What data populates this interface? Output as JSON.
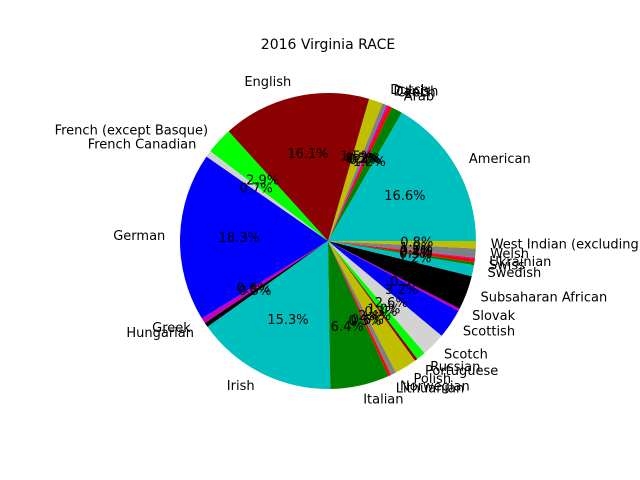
{
  "chart_data": {
    "type": "pie",
    "title": "2016 Virginia RACE",
    "start_angle_deg": 0,
    "direction": "counterclockwise",
    "slices": [
      {
        "label": "American",
        "value": 16.6,
        "pct": "16.6%",
        "color": "#00bfbf"
      },
      {
        "label": "Arab",
        "value": 1.2,
        "pct": "1.2%",
        "color": "#008000"
      },
      {
        "label": "Czech",
        "value": 0.4,
        "pct": "0.4%",
        "color": "#ff0000"
      },
      {
        "label": "Danish",
        "value": 0.2,
        "pct": "0.2%",
        "color": "#bf00bf"
      },
      {
        "label": "Dutch",
        "value": 0.5,
        "pct": "0.5%",
        "color": "#808080"
      },
      {
        "label": "",
        "value": 1.5,
        "pct": "1.5%",
        "color": "#bfbf00"
      },
      {
        "label": "English",
        "value": 16.1,
        "pct": "16.1%",
        "color": "#8b0000"
      },
      {
        "label": "French (except Basque)",
        "value": 2.9,
        "pct": "2.9%",
        "color": "#00ff00"
      },
      {
        "label": "French Canadian",
        "value": 0.7,
        "pct": "0.7%",
        "color": "#d3d3d3"
      },
      {
        "label": "German",
        "value": 18.3,
        "pct": "18.3%",
        "color": "#0000ff"
      },
      {
        "label": "Greek",
        "value": 0.6,
        "pct": "0.6%",
        "color": "#bf00bf"
      },
      {
        "label": "Hungarian",
        "value": 0.5,
        "pct": "0.5%",
        "color": "#000000"
      },
      {
        "label": "Irish",
        "value": 15.3,
        "pct": "15.3%",
        "color": "#00bfbf"
      },
      {
        "label": "Italian",
        "value": 6.4,
        "pct": "6.4%",
        "color": "#008000"
      },
      {
        "label": "Lithuanian",
        "value": 0.3,
        "pct": "0.3%",
        "color": "#ff0000"
      },
      {
        "label": "Norwegian",
        "value": 0.6,
        "pct": "0.6%",
        "color": "#808080"
      },
      {
        "label": "Polish",
        "value": 2.4,
        "pct": "2.4%",
        "color": "#bfbf00"
      },
      {
        "label": "Portuguese",
        "value": 0.3,
        "pct": "0.3%",
        "color": "#8b0000"
      },
      {
        "label": "Russian",
        "value": 1.0,
        "pct": "1.0%",
        "color": "#00ff00"
      },
      {
        "label": "Scotch",
        "value": 2.6,
        "pct": "2.6%",
        "color": "#d3d3d3"
      },
      {
        "label": "Scottish",
        "value": 3.2,
        "pct": "3.2%",
        "color": "#0000ff"
      },
      {
        "label": "Slovak",
        "value": 0.3,
        "pct": "0.3%",
        "color": "#bf00bf"
      },
      {
        "label": "Subsaharan African",
        "value": 3.7,
        "pct": "3.7%",
        "color": "#000000"
      },
      {
        "label": "Swedish",
        "value": 1.2,
        "pct": "1.2%",
        "color": "#00bfbf"
      },
      {
        "label": "Swiss",
        "value": 0.3,
        "pct": "0.3%",
        "color": "#008000"
      },
      {
        "label": "Ukrainian",
        "value": 0.4,
        "pct": "0.4%",
        "color": "#ff0000"
      },
      {
        "label": "",
        "value": 0.1,
        "pct": "0.1%",
        "color": "#bf00bf"
      },
      {
        "label": "Welsh",
        "value": 1.0,
        "pct": "1.0%",
        "color": "#808080"
      },
      {
        "label": "West Indian (excluding",
        "value": 0.8,
        "pct": "0.8%",
        "color": "#bfbf00"
      }
    ]
  }
}
